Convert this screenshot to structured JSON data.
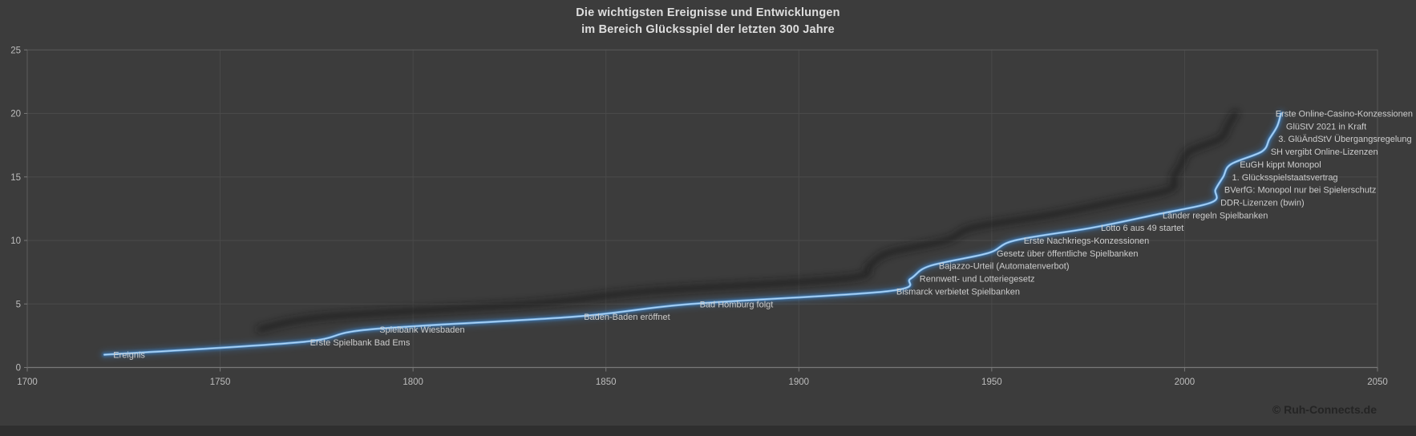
{
  "header": {
    "title_line1": "Die wichtigsten Ereignisse und Entwicklungen",
    "title_line2": "im Bereich Glücksspiel der letzten 300 Jahre"
  },
  "footer": {
    "copyright": "© Ruh-Connects.de"
  },
  "colors": {
    "background": "#3c3c3c",
    "line_core": "#bfdef7",
    "line_main": "#7ab3e8",
    "line_glow": "#3c7fc0",
    "line_shadow": "#121212",
    "grid": "#4a4a4a",
    "axis": "#787878",
    "border": "#585858",
    "tick_text": "#bdbdbd",
    "label_text": "#cdcdcd",
    "title_text": "#dedede",
    "copyright_text": "#242424"
  },
  "chart_data": {
    "type": "line",
    "title": "Die wichtigsten Ereignisse und Entwicklungen im Bereich Glücksspiel der letzten 300 Jahre",
    "xlabel": "",
    "ylabel": "",
    "xlim": [
      1700,
      2050
    ],
    "ylim": [
      0,
      25
    ],
    "grid": true,
    "legend_position": "none",
    "x_ticks": [
      "1700",
      "1750",
      "1800",
      "1850",
      "1900",
      "1950",
      "2000",
      "2050"
    ],
    "y_ticks": [
      "0",
      "5",
      "10",
      "15",
      "20",
      "25"
    ],
    "series_name": "Ereignis",
    "points": [
      {
        "year": 1720,
        "value": 1,
        "label": "Ereignis"
      },
      {
        "year": 1771,
        "value": 2,
        "label": "Erste Spielbank Bad Ems"
      },
      {
        "year": 1789,
        "value": 3,
        "label": "Spielbank Wiesbaden"
      },
      {
        "year": 1842,
        "value": 4,
        "label": "Baden-Baden eröffnet"
      },
      {
        "year": 1872,
        "value": 5,
        "label": "Bad Homburg folgt"
      },
      {
        "year": 1923,
        "value": 6,
        "label": "Bismarck verbietet Spielbanken"
      },
      {
        "year": 1929,
        "value": 7,
        "label": "Rennwett- und Lotteriegesetz"
      },
      {
        "year": 1934,
        "value": 8,
        "label": "Bajazzo-Urteil (Automatenverbot)"
      },
      {
        "year": 1949,
        "value": 9,
        "label": "Gesetz über öffentliche Spielbanken"
      },
      {
        "year": 1956,
        "value": 10,
        "label": "Erste Nachkriegs-Konzessionen"
      },
      {
        "year": 1976,
        "value": 11,
        "label": "Lotto 6 aus 49 startet"
      },
      {
        "year": 1992,
        "value": 12,
        "label": "Länder regeln Spielbanken"
      },
      {
        "year": 2007,
        "value": 13,
        "label": "DDR-Lizenzen (bwin)"
      },
      {
        "year": 2008,
        "value": 14,
        "label": "BVerfG: Monopol nur bei Spielerschutz"
      },
      {
        "year": 2010,
        "value": 15,
        "label": "1. Glücksspielstaatsvertrag"
      },
      {
        "year": 2012,
        "value": 16,
        "label": "EuGH kippt Monopol"
      },
      {
        "year": 2020,
        "value": 17,
        "label": "SH vergibt Online-Lizenzen"
      },
      {
        "year": 2022,
        "value": 18,
        "label": "3. GlüÄndStV Übergangsregelung"
      },
      {
        "year": 2024,
        "value": 19,
        "label": "GlüStV 2021 in Kraft"
      },
      {
        "year": 2025,
        "value": 20,
        "label": "Erste Online-Casino-Konzessionen"
      }
    ]
  }
}
